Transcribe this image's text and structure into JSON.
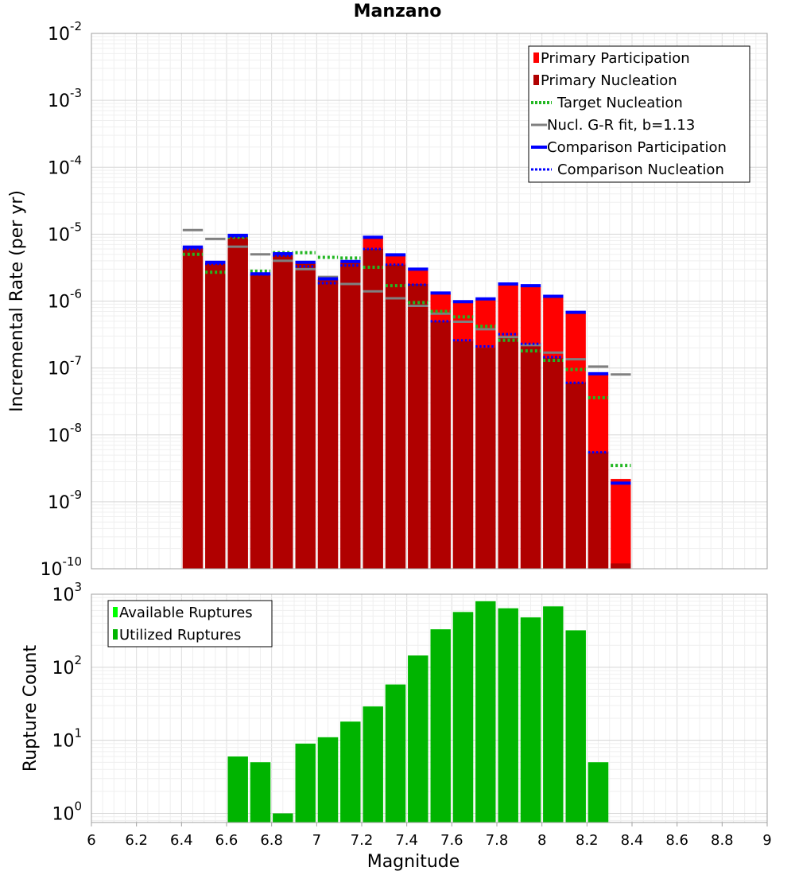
{
  "title": "Manzano",
  "xlabel": "Magnitude",
  "x_ticks": [
    "6",
    "6.2",
    "6.4",
    "6.6",
    "6.8",
    "7",
    "7.2",
    "7.4",
    "7.6",
    "7.8",
    "8",
    "8.2",
    "8.4",
    "8.6",
    "8.8",
    "9"
  ],
  "colors": {
    "primary_participation": "#ff0000",
    "primary_nucleation": "#b00000",
    "target_nucleation": "#22b722",
    "gr_fit": "#808080",
    "comparison": "#0000ff",
    "available": "#00ff00",
    "utilized": "#00b400"
  },
  "chart_data": [
    {
      "type": "bar",
      "ylabel": "Incremental Rate (per yr)",
      "yscale": "log",
      "ylim": [
        1e-10,
        0.01
      ],
      "y_ticks": [
        {
          "base": "10",
          "exp": "-10"
        },
        {
          "base": "10",
          "exp": "-9"
        },
        {
          "base": "10",
          "exp": "-8"
        },
        {
          "base": "10",
          "exp": "-7"
        },
        {
          "base": "10",
          "exp": "-6"
        },
        {
          "base": "10",
          "exp": "-5"
        },
        {
          "base": "10",
          "exp": "-4"
        },
        {
          "base": "10",
          "exp": "-3"
        },
        {
          "base": "10",
          "exp": "-2"
        }
      ],
      "xlim": [
        6,
        9
      ],
      "bin_width": 0.1,
      "legend_position": "top-right",
      "x": [
        6.45,
        6.55,
        6.65,
        6.75,
        6.85,
        6.95,
        7.05,
        7.15,
        7.25,
        7.35,
        7.45,
        7.55,
        7.65,
        7.75,
        7.85,
        7.95,
        8.05,
        8.15,
        8.25,
        8.35
      ],
      "series": [
        {
          "name": "Primary Participation",
          "style": "bar",
          "values": [
            6.2e-06,
            3.7e-06,
            9.5e-06,
            2.5e-06,
            5e-06,
            3.7e-06,
            2.1e-06,
            3.8e-06,
            8.8e-06,
            4.8e-06,
            2.9e-06,
            1.3e-06,
            9.5e-07,
            1.05e-06,
            1.75e-06,
            1.65e-06,
            1.15e-06,
            6.6e-07,
            8e-08,
            2.2e-09
          ]
        },
        {
          "name": "Primary Nucleation",
          "style": "bar",
          "values": [
            6.2e-06,
            3.7e-06,
            9.5e-06,
            2.5e-06,
            5e-06,
            3.7e-06,
            2.1e-06,
            3.8e-06,
            6e-06,
            3.5e-06,
            1.8e-06,
            5e-07,
            2.5e-07,
            2e-07,
            3e-07,
            2.2e-07,
            1.4e-07,
            6e-08,
            5.5e-09,
            1.2e-10
          ]
        },
        {
          "name": "Target Nucleation",
          "style": "dotted",
          "values": [
            5e-06,
            2.7e-06,
            9e-06,
            2.8e-06,
            5.3e-06,
            5.3e-06,
            4.5e-06,
            4.4e-06,
            3.2e-06,
            1.7e-06,
            9.5e-07,
            7e-07,
            5.8e-07,
            4.2e-07,
            2.6e-07,
            1.8e-07,
            1.3e-07,
            9.5e-08,
            3.6e-08,
            3.5e-09
          ]
        },
        {
          "name": "Nucl. G-R fit, b=1.13",
          "style": "line",
          "values": [
            1.15e-05,
            8.5e-06,
            6.5e-06,
            5e-06,
            4e-06,
            3e-06,
            2.3e-06,
            1.8e-06,
            1.4e-06,
            1.1e-06,
            8.5e-07,
            6.5e-07,
            4.9e-07,
            3.8e-07,
            2.9e-07,
            2.2e-07,
            1.7e-07,
            1.35e-07,
            1.05e-07,
            8e-08
          ]
        },
        {
          "name": "Comparison Participation",
          "style": "thick",
          "values": [
            6.4e-06,
            3.8e-06,
            9.6e-06,
            2.55e-06,
            5.1e-06,
            3.8e-06,
            2.15e-06,
            3.9e-06,
            9e-06,
            4.9e-06,
            3e-06,
            1.32e-06,
            9.8e-07,
            1.08e-06,
            1.8e-06,
            1.7e-06,
            1.18e-06,
            6.8e-07,
            8.2e-08,
            1.9e-09
          ]
        },
        {
          "name": "Comparison Nucleation",
          "style": "dotted",
          "values": [
            6e-06,
            3.6e-06,
            9.2e-06,
            2.5e-06,
            4.8e-06,
            3.3e-06,
            1.85e-06,
            3.4e-06,
            6e-06,
            3.5e-06,
            1.75e-06,
            5e-07,
            2.6e-07,
            2.1e-07,
            3.2e-07,
            2.3e-07,
            1.45e-07,
            6e-08,
            5.5e-09,
            null
          ]
        }
      ]
    },
    {
      "type": "bar",
      "ylabel": "Rupture Count",
      "yscale": "log",
      "ylim": [
        0.75,
        1000
      ],
      "y_ticks": [
        {
          "base": "10",
          "exp": "0"
        },
        {
          "base": "10",
          "exp": "1"
        },
        {
          "base": "10",
          "exp": "2"
        },
        {
          "base": "10",
          "exp": "3"
        }
      ],
      "xlim": [
        6,
        9
      ],
      "bin_width": 0.1,
      "legend_position": "top-left",
      "x": [
        6.65,
        6.75,
        6.85,
        6.95,
        7.05,
        7.15,
        7.25,
        7.35,
        7.45,
        7.55,
        7.65,
        7.75,
        7.85,
        7.95,
        8.05,
        8.15,
        8.25
      ],
      "series": [
        {
          "name": "Available Ruptures",
          "values": [
            6,
            5,
            1,
            9,
            11,
            18,
            29,
            58,
            145,
            330,
            570,
            800,
            640,
            480,
            680,
            320,
            5
          ]
        },
        {
          "name": "Utilized Ruptures",
          "values": [
            6,
            5,
            1,
            9,
            11,
            18,
            29,
            58,
            145,
            330,
            570,
            800,
            640,
            480,
            680,
            320,
            5
          ]
        }
      ]
    }
  ]
}
